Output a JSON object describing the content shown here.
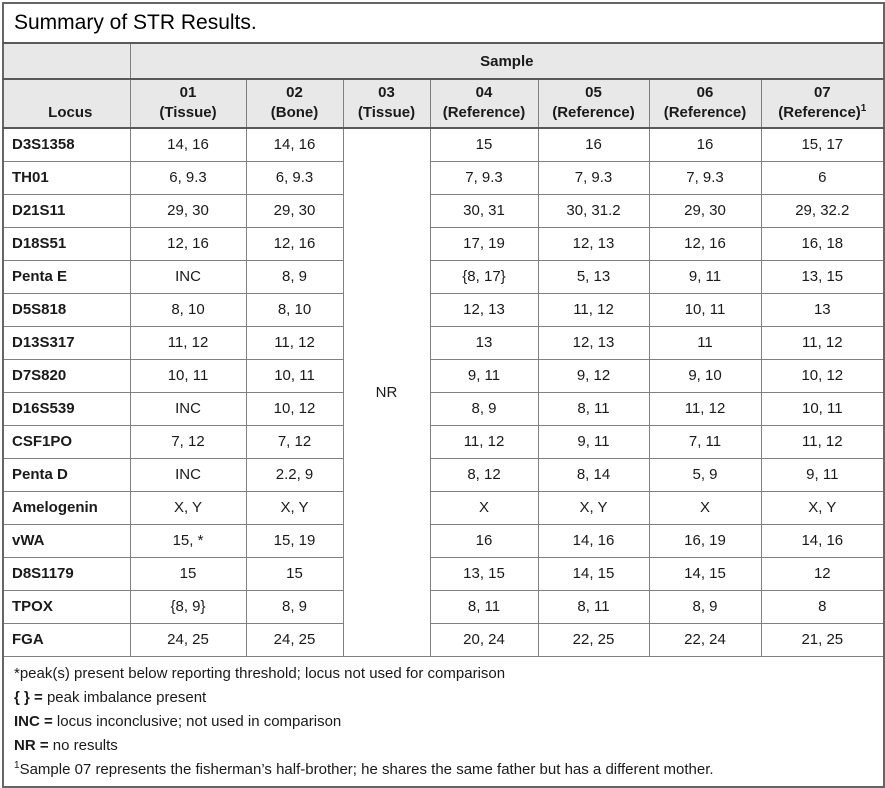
{
  "title": "Summary of STR Results.",
  "colors": {
    "header_bg": "#e8e8e8",
    "grid_line": "#808080",
    "outer_border": "#666666",
    "text": "#1a1a1a"
  },
  "table": {
    "sample_group_label": "Sample",
    "locus_header": "Locus",
    "no_result_label": "NR",
    "columns": [
      {
        "id": "01",
        "line1": "01",
        "line2": "(Tissue)",
        "sup": ""
      },
      {
        "id": "02",
        "line1": "02",
        "line2": "(Bone)",
        "sup": ""
      },
      {
        "id": "03",
        "line1": "03",
        "line2": "(Tissue)",
        "sup": ""
      },
      {
        "id": "04",
        "line1": "04",
        "line2": "(Reference)",
        "sup": ""
      },
      {
        "id": "05",
        "line1": "05",
        "line2": "(Reference)",
        "sup": ""
      },
      {
        "id": "06",
        "line1": "06",
        "line2": "(Reference)",
        "sup": ""
      },
      {
        "id": "07",
        "line1": "07",
        "line2": "(Reference)",
        "sup": "1"
      }
    ],
    "rows": [
      {
        "locus": "D3S1358",
        "s01": "14, 16",
        "s02": "14, 16",
        "s04": "15",
        "s05": "16",
        "s06": "16",
        "s07": "15, 17"
      },
      {
        "locus": "TH01",
        "s01": "6, 9.3",
        "s02": "6, 9.3",
        "s04": "7, 9.3",
        "s05": "7, 9.3",
        "s06": "7, 9.3",
        "s07": "6"
      },
      {
        "locus": "D21S11",
        "s01": "29, 30",
        "s02": "29, 30",
        "s04": "30, 31",
        "s05": "30, 31.2",
        "s06": "29, 30",
        "s07": "29, 32.2"
      },
      {
        "locus": "D18S51",
        "s01": "12, 16",
        "s02": "12, 16",
        "s04": "17, 19",
        "s05": "12, 13",
        "s06": "12, 16",
        "s07": "16, 18"
      },
      {
        "locus": "Penta E",
        "s01": "INC",
        "s02": "8, 9",
        "s04": "{8, 17}",
        "s05": "5, 13",
        "s06": "9, 11",
        "s07": "13, 15"
      },
      {
        "locus": "D5S818",
        "s01": "8, 10",
        "s02": "8, 10",
        "s04": "12, 13",
        "s05": "11, 12",
        "s06": "10, 11",
        "s07": "13"
      },
      {
        "locus": "D13S317",
        "s01": "11, 12",
        "s02": "11, 12",
        "s04": "13",
        "s05": "12, 13",
        "s06": "11",
        "s07": "11, 12"
      },
      {
        "locus": "D7S820",
        "s01": "10, 11",
        "s02": "10, 11",
        "s04": "9, 11",
        "s05": "9, 12",
        "s06": "9, 10",
        "s07": "10, 12"
      },
      {
        "locus": "D16S539",
        "s01": "INC",
        "s02": "10, 12",
        "s04": "8, 9",
        "s05": "8, 11",
        "s06": "11, 12",
        "s07": "10, 11"
      },
      {
        "locus": "CSF1PO",
        "s01": "7, 12",
        "s02": "7, 12",
        "s04": "11, 12",
        "s05": "9, 11",
        "s06": "7, 11",
        "s07": "11, 12"
      },
      {
        "locus": "Penta D",
        "s01": "INC",
        "s02": "2.2, 9",
        "s04": "8, 12",
        "s05": "8, 14",
        "s06": "5, 9",
        "s07": "9, 11"
      },
      {
        "locus": "Amelogenin",
        "s01": "X, Y",
        "s02": "X, Y",
        "s04": "X",
        "s05": "X, Y",
        "s06": "X",
        "s07": "X, Y"
      },
      {
        "locus": "vWA",
        "s01": "15, *",
        "s02": "15, 19",
        "s04": "16",
        "s05": "14, 16",
        "s06": "16, 19",
        "s07": "14, 16"
      },
      {
        "locus": "D8S1179",
        "s01": "15",
        "s02": "15",
        "s04": "13, 15",
        "s05": "14, 15",
        "s06": "14, 15",
        "s07": "12"
      },
      {
        "locus": "TPOX",
        "s01": "{8, 9}",
        "s02": "8, 9",
        "s04": "8, 11",
        "s05": "8, 11",
        "s06": "8, 9",
        "s07": "8"
      },
      {
        "locus": "FGA",
        "s01": "24, 25",
        "s02": "24, 25",
        "s04": "20, 24",
        "s05": "22, 25",
        "s06": "22, 24",
        "s07": "21, 25"
      }
    ]
  },
  "footnotes": [
    {
      "bold": "",
      "sup": "",
      "text": "*peak(s) present below reporting threshold; locus not used for comparison"
    },
    {
      "bold": "{ } =",
      "sup": "",
      "text": " peak imbalance present"
    },
    {
      "bold": "INC =",
      "sup": "",
      "text": " locus inconclusive; not used in comparison"
    },
    {
      "bold": "NR =",
      "sup": "",
      "text": " no results"
    },
    {
      "bold": "",
      "sup": "1",
      "text": "Sample 07 represents the fisherman’s half-brother; he shares the same father but has a different mother."
    }
  ]
}
